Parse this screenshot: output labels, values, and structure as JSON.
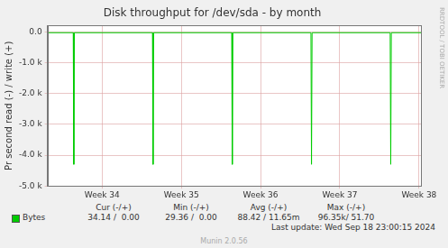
{
  "chart_data": {
    "type": "line",
    "title": "Disk throughput for /dev/sda - by month",
    "y_label": "Pr second read (-) / write (+)",
    "x": [
      0,
      2.28,
      2.33,
      2.38,
      9.28,
      9.33,
      9.38,
      16.28,
      16.33,
      16.38,
      23.28,
      23.33,
      23.38,
      30.28,
      30.33,
      30.38,
      33
    ],
    "series": [
      {
        "name": "Bytes",
        "color": "#00cc00",
        "values": [
          -30,
          -30,
          -4300,
          -30,
          -30,
          -4300,
          -30,
          -30,
          -4300,
          -30,
          -30,
          -4300,
          -30,
          -30,
          -4300,
          -30,
          -30
        ]
      }
    ],
    "xlim": [
      0,
      33
    ],
    "xticks": [
      {
        "value": 4.83,
        "label": "Week 34"
      },
      {
        "value": 11.83,
        "label": "Week 35"
      },
      {
        "value": 18.83,
        "label": "Week 36"
      },
      {
        "value": 25.83,
        "label": "Week 37"
      },
      {
        "value": 32.83,
        "label": "Week 38"
      }
    ],
    "ylim": [
      -5000,
      200
    ],
    "yticks": [
      {
        "value": 0,
        "label": "0.0"
      },
      {
        "value": -1000,
        "label": "-1.0 k"
      },
      {
        "value": -2000,
        "label": "-2.0 k"
      },
      {
        "value": -3000,
        "label": "-3.0 k"
      },
      {
        "value": -4000,
        "label": "-4.0 k"
      },
      {
        "value": -5000,
        "label": "-5.0 k"
      }
    ],
    "grid": true
  },
  "summary": {
    "columns": [
      "Cur (-/+)",
      "Min (-/+)",
      "Avg (-/+)",
      "Max (-/+)"
    ],
    "cells": [
      "34.14 /  0.00",
      "29.36 /  0.00",
      "88.42 / 11.65m",
      "96.35k/ 51.70"
    ],
    "last_update": "Last update: Wed Sep 18 23:00:15 2024"
  },
  "footer": "Munin 2.0.56",
  "watermark": "RRDTOOL / TOBI OETIKER"
}
